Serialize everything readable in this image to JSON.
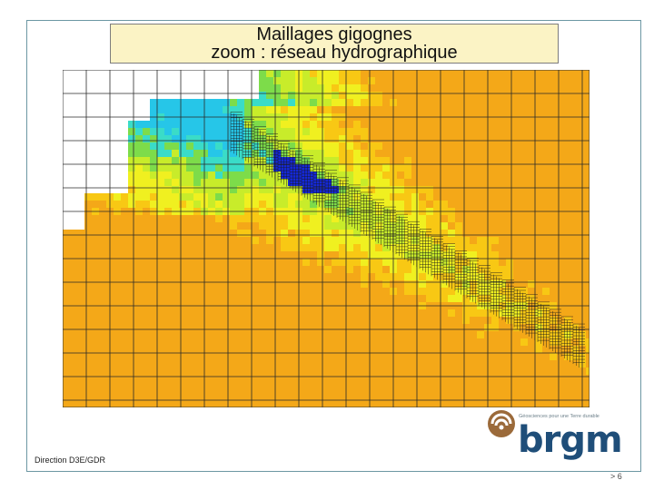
{
  "title": {
    "line1": "Maillages gigognes",
    "line2": "zoom : réseau hydrographique"
  },
  "footer": {
    "department": "Direction D3E/GDR",
    "page": "> 6"
  },
  "logo": {
    "tagline": "Géosciences pour une Terre durable",
    "word": "brgm",
    "icon": "brgm-spiral-icon",
    "colors": {
      "icon": "#9b6a3a",
      "word": "#1f4e79"
    }
  },
  "map": {
    "description_colors": [
      "#1428d8",
      "#26c6e8",
      "#3adcc8",
      "#7ddc4a",
      "#c8ec2a",
      "#f0f020",
      "#f8c814",
      "#f4a818"
    ]
  }
}
